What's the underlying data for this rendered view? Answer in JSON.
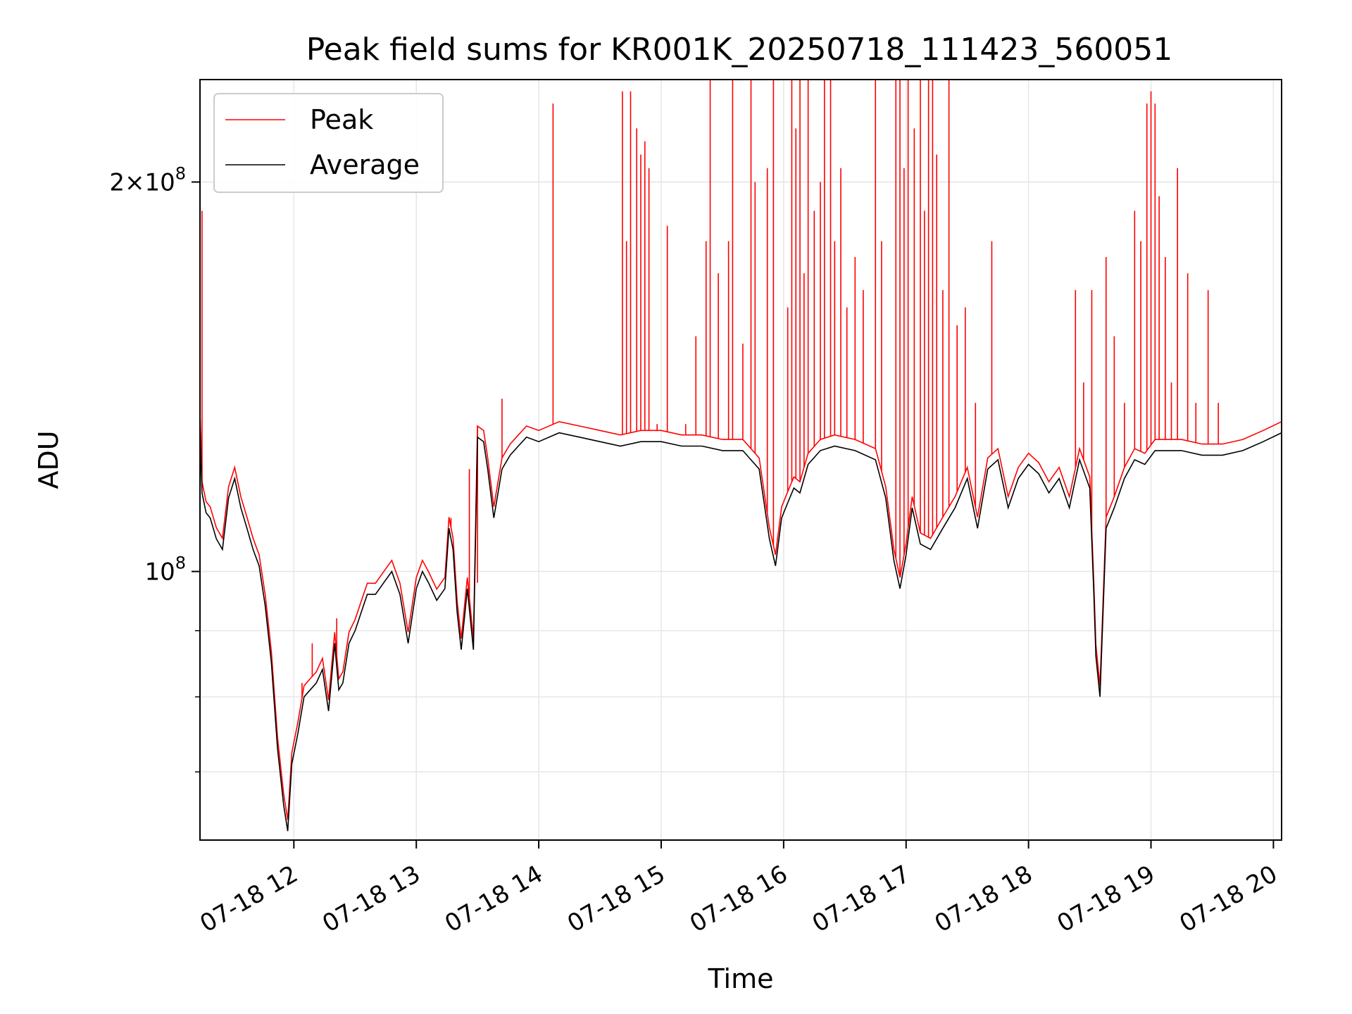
{
  "chart_data": {
    "type": "line",
    "title": "Peak field sums for KR001K_20250718_111423_560051",
    "xlabel": "Time",
    "ylabel": "ADU",
    "yscale": "log",
    "grid": true,
    "legend": {
      "placement": "top-left",
      "entries": [
        "Peak",
        "Average"
      ]
    },
    "colors": {
      "Peak": "#ff0000",
      "Average": "#000000"
    },
    "xlim": [
      "2025-07-18 11:14",
      "2025-07-18 20:04"
    ],
    "ylim": [
      62000000,
      240000000
    ],
    "x_ticks": [
      "07-18 12",
      "07-18 13",
      "07-18 14",
      "07-18 15",
      "07-18 16",
      "07-18 17",
      "07-18 18",
      "07-18 19",
      "07-18 20"
    ],
    "y_ticks": [
      "2×10^8",
      "10^8"
    ],
    "series": [
      {
        "name": "Average",
        "x": [
          "2025-07-18 11:14",
          "2025-07-18 11:15",
          "2025-07-18 11:17",
          "2025-07-18 11:19",
          "2025-07-18 11:22",
          "2025-07-18 11:25",
          "2025-07-18 11:28",
          "2025-07-18 11:31",
          "2025-07-18 11:34",
          "2025-07-18 11:37",
          "2025-07-18 11:40",
          "2025-07-18 11:43",
          "2025-07-18 11:46",
          "2025-07-18 11:49",
          "2025-07-18 11:52",
          "2025-07-18 11:55",
          "2025-07-18 11:57",
          "2025-07-18 11:59",
          "2025-07-18 12:02",
          "2025-07-18 12:05",
          "2025-07-18 12:08",
          "2025-07-18 12:11",
          "2025-07-18 12:14",
          "2025-07-18 12:17",
          "2025-07-18 12:20",
          "2025-07-18 12:22",
          "2025-07-18 12:24",
          "2025-07-18 12:27",
          "2025-07-18 12:30",
          "2025-07-18 12:33",
          "2025-07-18 12:36",
          "2025-07-18 12:40",
          "2025-07-18 12:44",
          "2025-07-18 12:48",
          "2025-07-18 12:52",
          "2025-07-18 12:56",
          "2025-07-18 13:00",
          "2025-07-18 13:03",
          "2025-07-18 13:06",
          "2025-07-18 13:10",
          "2025-07-18 13:14",
          "2025-07-18 13:16",
          "2025-07-18 13:18",
          "2025-07-18 13:20",
          "2025-07-18 13:22",
          "2025-07-18 13:25",
          "2025-07-18 13:28",
          "2025-07-18 13:30",
          "2025-07-18 13:33",
          "2025-07-18 13:35",
          "2025-07-18 13:38",
          "2025-07-18 13:42",
          "2025-07-18 13:46",
          "2025-07-18 13:50",
          "2025-07-18 13:54",
          "2025-07-18 14:00",
          "2025-07-18 14:10",
          "2025-07-18 14:20",
          "2025-07-18 14:30",
          "2025-07-18 14:40",
          "2025-07-18 14:50",
          "2025-07-18 15:00",
          "2025-07-18 15:10",
          "2025-07-18 15:20",
          "2025-07-18 15:30",
          "2025-07-18 15:40",
          "2025-07-18 15:48",
          "2025-07-18 15:53",
          "2025-07-18 15:56",
          "2025-07-18 15:59",
          "2025-07-18 16:02",
          "2025-07-18 16:05",
          "2025-07-18 16:08",
          "2025-07-18 16:12",
          "2025-07-18 16:18",
          "2025-07-18 16:25",
          "2025-07-18 16:35",
          "2025-07-18 16:45",
          "2025-07-18 16:50",
          "2025-07-18 16:54",
          "2025-07-18 16:57",
          "2025-07-18 17:00",
          "2025-07-18 17:03",
          "2025-07-18 17:07",
          "2025-07-18 17:12",
          "2025-07-18 17:18",
          "2025-07-18 17:24",
          "2025-07-18 17:30",
          "2025-07-18 17:35",
          "2025-07-18 17:40",
          "2025-07-18 17:45",
          "2025-07-18 17:50",
          "2025-07-18 17:55",
          "2025-07-18 18:00",
          "2025-07-18 18:05",
          "2025-07-18 18:10",
          "2025-07-18 18:15",
          "2025-07-18 18:20",
          "2025-07-18 18:25",
          "2025-07-18 18:30",
          "2025-07-18 18:32",
          "2025-07-18 18:33",
          "2025-07-18 18:35",
          "2025-07-18 18:38",
          "2025-07-18 18:42",
          "2025-07-18 18:47",
          "2025-07-18 18:52",
          "2025-07-18 18:57",
          "2025-07-18 19:02",
          "2025-07-18 19:08",
          "2025-07-18 19:15",
          "2025-07-18 19:25",
          "2025-07-18 19:35",
          "2025-07-18 19:45",
          "2025-07-18 19:55",
          "2025-07-18 20:04"
        ],
        "values": [
          130000000,
          115000000,
          111000000,
          110000000,
          106000000,
          104000000,
          114000000,
          118000000,
          112000000,
          108000000,
          104000000,
          101000000,
          94000000,
          85000000,
          73000000,
          66000000,
          63000000,
          71000000,
          75000000,
          80000000,
          81000000,
          82000000,
          84000000,
          78000000,
          88000000,
          81000000,
          82000000,
          88000000,
          90000000,
          93000000,
          96000000,
          96000000,
          98000000,
          100000000,
          96000000,
          88000000,
          97000000,
          100000000,
          98000000,
          95000000,
          97000000,
          108000000,
          104000000,
          93000000,
          87000000,
          97000000,
          87000000,
          127000000,
          126000000,
          120000000,
          110000000,
          120000000,
          123000000,
          125000000,
          127000000,
          126000000,
          128000000,
          127000000,
          126000000,
          125000000,
          126000000,
          126000000,
          125000000,
          125000000,
          124000000,
          124000000,
          120000000,
          106000000,
          101000000,
          110000000,
          113000000,
          116000000,
          115000000,
          121000000,
          124000000,
          125000000,
          124000000,
          122000000,
          114000000,
          102000000,
          97000000,
          103000000,
          112000000,
          105000000,
          104000000,
          108000000,
          112000000,
          118000000,
          108000000,
          120000000,
          122000000,
          112000000,
          118000000,
          121000000,
          119000000,
          115000000,
          118000000,
          112000000,
          122000000,
          116000000,
          96000000,
          86000000,
          80000000,
          108000000,
          112000000,
          118000000,
          122000000,
          121000000,
          124000000,
          124000000,
          124000000,
          123000000,
          123000000,
          124000000,
          126000000,
          128000000
        ]
      },
      {
        "name": "Peak",
        "spikes": [
          {
            "x": "2025-07-18 11:15",
            "y": 190000000
          },
          {
            "x": "2025-07-18 12:04",
            "y": 82000000
          },
          {
            "x": "2025-07-18 12:09",
            "y": 88000000
          },
          {
            "x": "2025-07-18 12:15",
            "y": 84000000
          },
          {
            "x": "2025-07-18 12:21",
            "y": 92000000
          },
          {
            "x": "2025-07-18 13:17",
            "y": 110000000
          },
          {
            "x": "2025-07-18 13:26",
            "y": 120000000
          },
          {
            "x": "2025-07-18 13:30",
            "y": 98000000
          },
          {
            "x": "2025-07-18 13:42",
            "y": 136000000
          },
          {
            "x": "2025-07-18 14:07",
            "y": 230000000
          },
          {
            "x": "2025-07-18 14:41",
            "y": 235000000
          },
          {
            "x": "2025-07-18 14:43",
            "y": 180000000
          },
          {
            "x": "2025-07-18 14:45",
            "y": 235000000
          },
          {
            "x": "2025-07-18 14:48",
            "y": 220000000
          },
          {
            "x": "2025-07-18 14:50",
            "y": 210000000
          },
          {
            "x": "2025-07-18 14:52",
            "y": 215000000
          },
          {
            "x": "2025-07-18 14:54",
            "y": 205000000
          },
          {
            "x": "2025-07-18 14:58",
            "y": 130000000
          },
          {
            "x": "2025-07-18 15:03",
            "y": 185000000
          },
          {
            "x": "2025-07-18 15:12",
            "y": 130000000
          },
          {
            "x": "2025-07-18 15:17",
            "y": 152000000
          },
          {
            "x": "2025-07-18 15:22",
            "y": 180000000
          },
          {
            "x": "2025-07-18 15:24",
            "y": 240000000
          },
          {
            "x": "2025-07-18 15:28",
            "y": 170000000
          },
          {
            "x": "2025-07-18 15:33",
            "y": 180000000
          },
          {
            "x": "2025-07-18 15:35",
            "y": 240000000
          },
          {
            "x": "2025-07-18 15:40",
            "y": 150000000
          },
          {
            "x": "2025-07-18 15:44",
            "y": 240000000
          },
          {
            "x": "2025-07-18 15:46",
            "y": 200000000
          },
          {
            "x": "2025-07-18 15:52",
            "y": 205000000
          },
          {
            "x": "2025-07-18 15:55",
            "y": 240000000
          },
          {
            "x": "2025-07-18 16:02",
            "y": 160000000
          },
          {
            "x": "2025-07-18 16:04",
            "y": 240000000
          },
          {
            "x": "2025-07-18 16:06",
            "y": 220000000
          },
          {
            "x": "2025-07-18 16:08",
            "y": 240000000
          },
          {
            "x": "2025-07-18 16:10",
            "y": 170000000
          },
          {
            "x": "2025-07-18 16:12",
            "y": 240000000
          },
          {
            "x": "2025-07-18 16:15",
            "y": 190000000
          },
          {
            "x": "2025-07-18 16:18",
            "y": 200000000
          },
          {
            "x": "2025-07-18 16:20",
            "y": 240000000
          },
          {
            "x": "2025-07-18 16:23",
            "y": 240000000
          },
          {
            "x": "2025-07-18 16:25",
            "y": 180000000
          },
          {
            "x": "2025-07-18 16:28",
            "y": 205000000
          },
          {
            "x": "2025-07-18 16:31",
            "y": 160000000
          },
          {
            "x": "2025-07-18 16:35",
            "y": 175000000
          },
          {
            "x": "2025-07-18 16:39",
            "y": 165000000
          },
          {
            "x": "2025-07-18 16:45",
            "y": 240000000
          },
          {
            "x": "2025-07-18 16:48",
            "y": 180000000
          },
          {
            "x": "2025-07-18 16:55",
            "y": 240000000
          },
          {
            "x": "2025-07-18 16:57",
            "y": 240000000
          },
          {
            "x": "2025-07-18 16:59",
            "y": 205000000
          },
          {
            "x": "2025-07-18 17:01",
            "y": 240000000
          },
          {
            "x": "2025-07-18 17:04",
            "y": 220000000
          },
          {
            "x": "2025-07-18 17:07",
            "y": 240000000
          },
          {
            "x": "2025-07-18 17:09",
            "y": 190000000
          },
          {
            "x": "2025-07-18 17:11",
            "y": 240000000
          },
          {
            "x": "2025-07-18 17:13",
            "y": 240000000
          },
          {
            "x": "2025-07-18 17:15",
            "y": 210000000
          },
          {
            "x": "2025-07-18 17:18",
            "y": 165000000
          },
          {
            "x": "2025-07-18 17:21",
            "y": 240000000
          },
          {
            "x": "2025-07-18 17:25",
            "y": 155000000
          },
          {
            "x": "2025-07-18 17:29",
            "y": 160000000
          },
          {
            "x": "2025-07-18 17:34",
            "y": 135000000
          },
          {
            "x": "2025-07-18 17:42",
            "y": 180000000
          },
          {
            "x": "2025-07-18 18:23",
            "y": 165000000
          },
          {
            "x": "2025-07-18 18:27",
            "y": 140000000
          },
          {
            "x": "2025-07-18 18:31",
            "y": 165000000
          },
          {
            "x": "2025-07-18 18:38",
            "y": 175000000
          },
          {
            "x": "2025-07-18 18:42",
            "y": 152000000
          },
          {
            "x": "2025-07-18 18:47",
            "y": 135000000
          },
          {
            "x": "2025-07-18 18:52",
            "y": 190000000
          },
          {
            "x": "2025-07-18 18:55",
            "y": 180000000
          },
          {
            "x": "2025-07-18 18:58",
            "y": 230000000
          },
          {
            "x": "2025-07-18 19:00",
            "y": 235000000
          },
          {
            "x": "2025-07-18 19:02",
            "y": 230000000
          },
          {
            "x": "2025-07-18 19:04",
            "y": 195000000
          },
          {
            "x": "2025-07-18 19:07",
            "y": 175000000
          },
          {
            "x": "2025-07-18 19:10",
            "y": 140000000
          },
          {
            "x": "2025-07-18 19:13",
            "y": 205000000
          },
          {
            "x": "2025-07-18 19:18",
            "y": 170000000
          },
          {
            "x": "2025-07-18 19:22",
            "y": 135000000
          },
          {
            "x": "2025-07-18 19:28",
            "y": 165000000
          },
          {
            "x": "2025-07-18 19:33",
            "y": 135000000
          }
        ]
      }
    ]
  }
}
